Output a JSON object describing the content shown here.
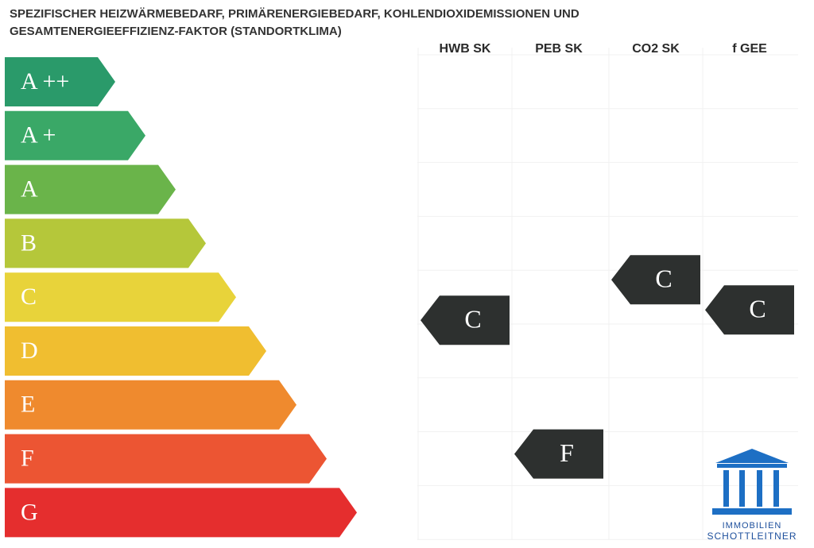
{
  "header": {
    "title_lines": [
      "SPEZIFISCHER HEIZWÄRMEBEDARF, PRIMÄRENERGIEBEDARF, KOHLENDIOXIDEMISSIONEN UND",
      "GESAMTENERGIEEFFIZIENZ-FAKTOR (STANDORTKLIMA)"
    ]
  },
  "columns": [
    "HWB SK",
    "PEB SK",
    "CO2 SK",
    "f GEE"
  ],
  "classes": [
    "A ++",
    "A +",
    "A",
    "B",
    "C",
    "D",
    "E",
    "F",
    "G"
  ],
  "ratings": [
    "C",
    "F",
    "C",
    "C"
  ],
  "logo": {
    "line1": "IMMOBILIEN",
    "line2": "SCHOTTLEITNER"
  }
}
